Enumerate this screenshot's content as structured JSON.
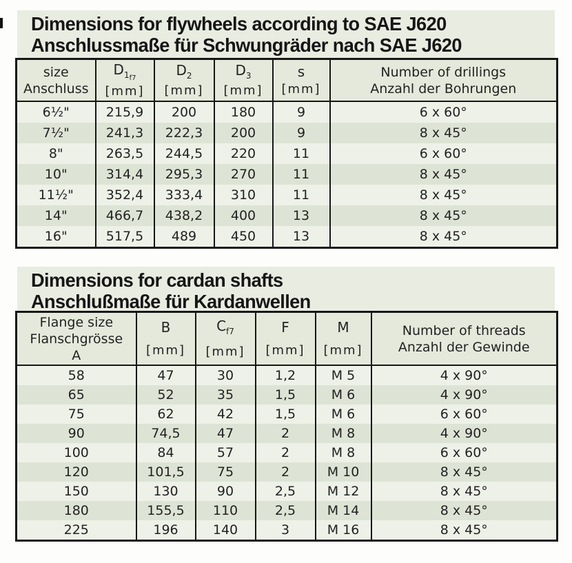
{
  "colors": {
    "band_background": "#e9ece1",
    "header_cell_background": "#e4e9db",
    "row_light": "#eef1e8",
    "row_dark": "#dee4d5",
    "border": "#161616",
    "page_background": "#fdfdfb"
  },
  "flywheel_section": {
    "title_en": "Dimensions for flywheels according to SAE J620",
    "title_de": "Anschlussmaße für Schwungräder nach SAE J620",
    "table": {
      "headers": [
        {
          "line1": "size",
          "line2": "Anschluss"
        },
        {
          "symbol": "D",
          "sub": "1",
          "sub2": "f7",
          "unit": "[mm]"
        },
        {
          "symbol": "D",
          "sub": "2",
          "sub2": "",
          "unit": "[mm]"
        },
        {
          "symbol": "D",
          "sub": "3",
          "sub2": "",
          "unit": "[mm]"
        },
        {
          "symbol": "s",
          "sub": "",
          "sub2": "",
          "unit": "[mm]"
        },
        {
          "line1": "Number of drillings",
          "line2": "Anzahl der Bohrungen"
        }
      ],
      "rows": [
        [
          "6½\"",
          "215,9",
          "200",
          "180",
          "9",
          "6 x 60°"
        ],
        [
          "7½\"",
          "241,3",
          "222,3",
          "200",
          "9",
          "8 x 45°"
        ],
        [
          "8\"",
          "263,5",
          "244,5",
          "220",
          "11",
          "6 x 60°"
        ],
        [
          "10\"",
          "314,4",
          "295,3",
          "270",
          "11",
          "8 x 45°"
        ],
        [
          "11½\"",
          "352,4",
          "333,4",
          "310",
          "11",
          "8 x 45°"
        ],
        [
          "14\"",
          "466,7",
          "438,2",
          "400",
          "13",
          "8 x 45°"
        ],
        [
          "16\"",
          "517,5",
          "489",
          "450",
          "13",
          "8 x 45°"
        ]
      ]
    }
  },
  "cardan_section": {
    "title_en": "Dimensions for cardan shafts",
    "title_de": "Anschlußmaße für Kardanwellen",
    "table": {
      "headers": [
        {
          "line1": "Flange size",
          "line2": "Flanschgrösse",
          "line3": "A"
        },
        {
          "symbol": "B",
          "sub": "",
          "sub2": "",
          "unit": "[mm]"
        },
        {
          "symbol": "C",
          "sub": "f7",
          "sub2": "",
          "unit": "[mm]"
        },
        {
          "symbol": "F",
          "sub": "",
          "sub2": "",
          "unit": "[mm]"
        },
        {
          "symbol": "M",
          "sub": "",
          "sub2": "",
          "unit": "[mm]"
        },
        {
          "line1": "Number of threads",
          "line2": "Anzahl der Gewinde"
        }
      ],
      "rows": [
        [
          "58",
          "47",
          "30",
          "1,2",
          "M 5",
          "4 x 90°"
        ],
        [
          "65",
          "52",
          "35",
          "1,5",
          "M 6",
          "4 x 90°"
        ],
        [
          "75",
          "62",
          "42",
          "1,5",
          "M 6",
          "6 x 60°"
        ],
        [
          "90",
          "74,5",
          "47",
          "2",
          "M 8",
          "4 x 90°"
        ],
        [
          "100",
          "84",
          "57",
          "2",
          "M 8",
          "6 x 60°"
        ],
        [
          "120",
          "101,5",
          "75",
          "2",
          "M 10",
          "8 x 45°"
        ],
        [
          "150",
          "130",
          "90",
          "2,5",
          "M 12",
          "8 x 45°"
        ],
        [
          "180",
          "155,5",
          "110",
          "2,5",
          "M 14",
          "8 x 45°"
        ],
        [
          "225",
          "196",
          "140",
          "3",
          "M 16",
          "8 x 45°"
        ]
      ]
    }
  }
}
